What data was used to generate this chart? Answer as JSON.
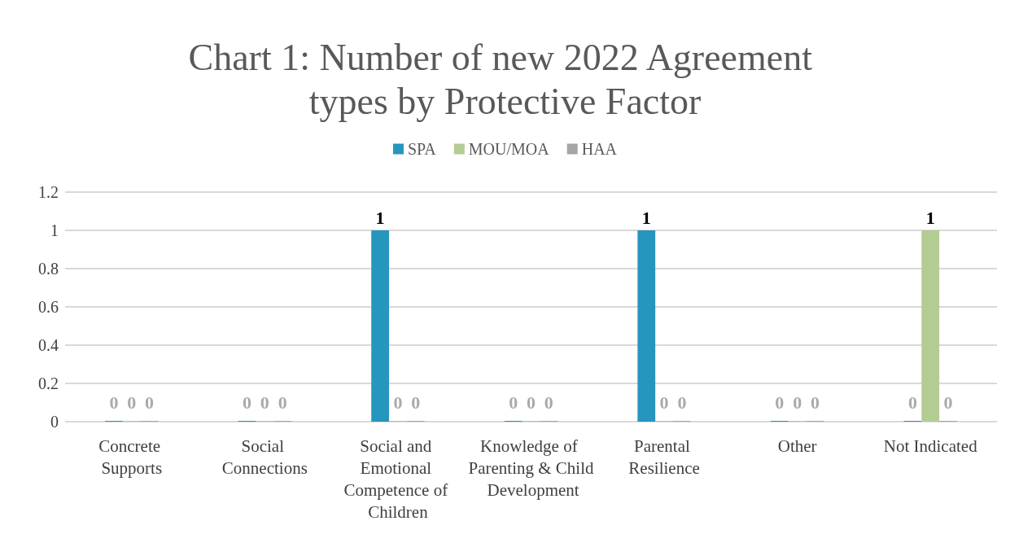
{
  "chart_data": {
    "type": "bar",
    "title": "Chart 1: Number of new 2022 Agreement types by Protective Factor",
    "categories": [
      "Concrete Supports",
      "Social Connections",
      "Social and Emotional Competence of Children",
      "Knowledge of Parenting & Child Development",
      "Parental Resilience",
      "Other",
      "Not Indicated"
    ],
    "series": [
      {
        "name": "SPA",
        "color": "#2596be",
        "values": [
          0,
          0,
          1,
          0,
          1,
          0,
          0
        ]
      },
      {
        "name": "MOU/MOA",
        "color": "#b3cc94",
        "values": [
          0,
          0,
          0,
          0,
          0,
          0,
          1
        ]
      },
      {
        "name": "HAA",
        "color": "#a5a5a5",
        "values": [
          0,
          0,
          0,
          0,
          0,
          0,
          0
        ]
      }
    ],
    "ylim": [
      0,
      1.2
    ],
    "yticks": [
      0,
      0.2,
      0.4,
      0.6,
      0.8,
      1,
      1.2
    ],
    "grid": "y",
    "legend": "top",
    "data_labels": true
  }
}
